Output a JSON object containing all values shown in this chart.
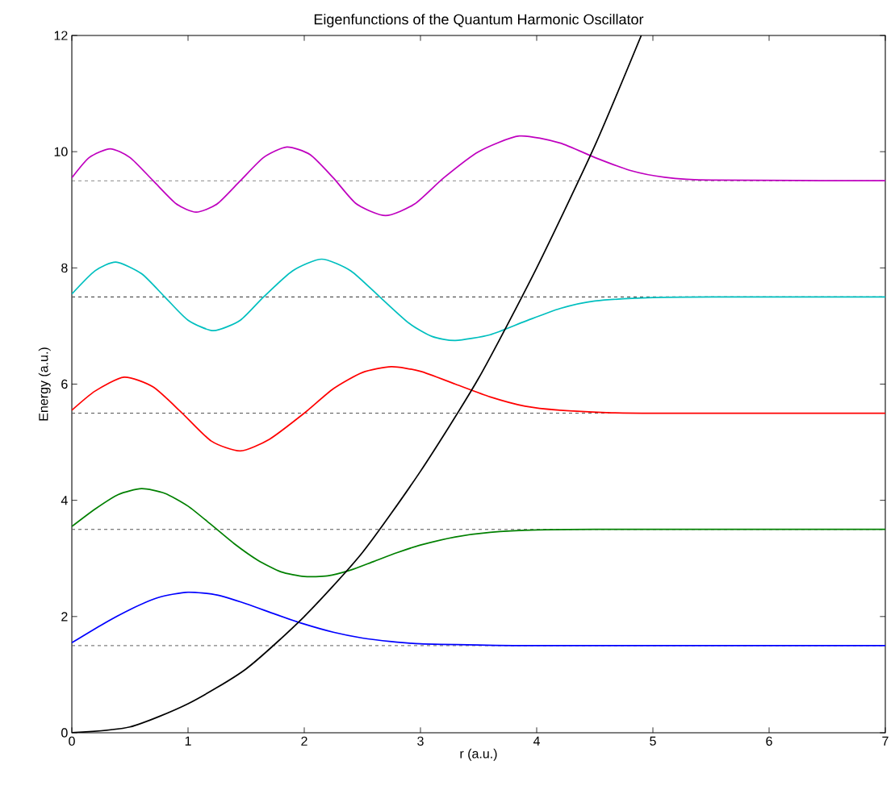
{
  "chart_data": {
    "type": "line",
    "title": "Eigenfunctions of the Quantum Harmonic Oscillator",
    "xlabel": "r (a.u.)",
    "ylabel": "Energy (a.u.)",
    "xlim": [
      0,
      7
    ],
    "ylim": [
      0,
      12
    ],
    "xticks": [
      0,
      1,
      2,
      3,
      4,
      5,
      6,
      7
    ],
    "yticks": [
      0,
      2,
      4,
      6,
      8,
      10,
      12
    ],
    "grid": false,
    "marker": "none",
    "line_style": "solid",
    "ref_lines": [
      {
        "axis": "y",
        "value": 1.5,
        "color": "#555555",
        "line_style": "dashed"
      },
      {
        "axis": "y",
        "value": 3.5,
        "color": "#555555",
        "line_style": "dashed"
      },
      {
        "axis": "y",
        "value": 5.5,
        "color": "#555555",
        "line_style": "dashed"
      },
      {
        "axis": "y",
        "value": 7.5,
        "color": "#555555",
        "line_style": "dashed"
      },
      {
        "axis": "y",
        "value": 9.5,
        "color": "#555555",
        "line_style": "dashed"
      }
    ],
    "series": [
      {
        "color": "#0000ff",
        "x": [
          0,
          0.25,
          0.5,
          0.75,
          1.0,
          1.25,
          1.5,
          1.75,
          2.0,
          2.25,
          2.5,
          2.75,
          3.0,
          3.5,
          4.0,
          7.0
        ],
        "values": [
          1.55,
          1.85,
          2.12,
          2.33,
          2.42,
          2.37,
          2.22,
          2.04,
          1.87,
          1.73,
          1.63,
          1.57,
          1.53,
          1.51,
          1.5,
          1.5
        ]
      },
      {
        "color": "#008000",
        "x": [
          0,
          0.2,
          0.4,
          0.6,
          0.8,
          1.0,
          1.2,
          1.4,
          1.6,
          1.8,
          2.0,
          2.2,
          2.4,
          2.6,
          2.8,
          3.0,
          3.3,
          3.6,
          4.0,
          4.5,
          7.0
        ],
        "values": [
          3.55,
          3.85,
          4.1,
          4.2,
          4.12,
          3.9,
          3.58,
          3.25,
          2.97,
          2.77,
          2.69,
          2.7,
          2.8,
          2.95,
          3.1,
          3.23,
          3.37,
          3.45,
          3.49,
          3.5,
          3.5
        ]
      },
      {
        "color": "#ff0000",
        "x": [
          0,
          0.2,
          0.45,
          0.7,
          0.95,
          1.2,
          1.45,
          1.7,
          2.0,
          2.25,
          2.5,
          2.75,
          3.0,
          3.3,
          3.6,
          3.9,
          4.2,
          4.6,
          5.0,
          7.0
        ],
        "values": [
          5.55,
          5.88,
          6.12,
          5.95,
          5.5,
          5.02,
          4.85,
          5.05,
          5.5,
          5.92,
          6.2,
          6.3,
          6.22,
          6.0,
          5.78,
          5.62,
          5.55,
          5.51,
          5.5,
          5.5
        ]
      },
      {
        "color": "#00bfbf",
        "x": [
          0,
          0.2,
          0.38,
          0.6,
          0.8,
          1.0,
          1.22,
          1.45,
          1.65,
          1.9,
          2.15,
          2.4,
          2.65,
          2.9,
          3.1,
          3.3,
          3.6,
          3.9,
          4.2,
          4.5,
          5.0,
          5.5,
          7.0
        ],
        "values": [
          7.55,
          7.95,
          8.1,
          7.9,
          7.5,
          7.1,
          6.92,
          7.1,
          7.5,
          7.95,
          8.15,
          7.95,
          7.5,
          7.05,
          6.82,
          6.75,
          6.85,
          7.08,
          7.3,
          7.43,
          7.49,
          7.5,
          7.5
        ]
      },
      {
        "color": "#bf00bf",
        "x": [
          0,
          0.15,
          0.33,
          0.5,
          0.7,
          0.9,
          1.07,
          1.25,
          1.45,
          1.65,
          1.85,
          2.05,
          2.25,
          2.45,
          2.7,
          2.95,
          3.2,
          3.5,
          3.85,
          4.2,
          4.5,
          4.8,
          5.1,
          5.5,
          7.0
        ],
        "values": [
          9.55,
          9.9,
          10.05,
          9.9,
          9.5,
          9.1,
          8.96,
          9.1,
          9.5,
          9.9,
          10.08,
          9.95,
          9.55,
          9.1,
          8.9,
          9.1,
          9.55,
          10.0,
          10.27,
          10.15,
          9.9,
          9.68,
          9.56,
          9.51,
          9.5
        ]
      },
      {
        "color": "#000000",
        "x": [
          0,
          0.5,
          1.0,
          1.5,
          2.0,
          2.5,
          3.0,
          3.5,
          4.0,
          4.5,
          4.9
        ],
        "values": [
          0,
          0.1,
          0.5,
          1.1,
          2,
          3.1,
          4.5,
          6.1,
          8,
          10.1,
          12
        ]
      }
    ]
  }
}
